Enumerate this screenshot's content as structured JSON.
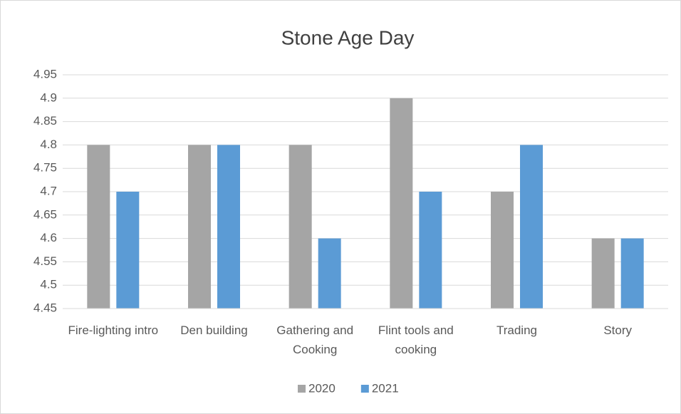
{
  "chart_data": {
    "type": "bar",
    "title": "Stone Age Day",
    "categories": [
      "Fire-lighting intro",
      "Den building",
      "Gathering and Cooking",
      "Flint tools and cooking",
      "Trading",
      "Story"
    ],
    "series": [
      {
        "name": "2020",
        "color": "#a5a5a5",
        "values": [
          4.8,
          4.8,
          4.8,
          4.9,
          4.7,
          4.6
        ]
      },
      {
        "name": "2021",
        "color": "#5b9bd5",
        "values": [
          4.7,
          4.8,
          4.6,
          4.7,
          4.8,
          4.6
        ]
      }
    ],
    "ylim": [
      4.45,
      4.95
    ],
    "yticks": [
      4.45,
      4.5,
      4.55,
      4.6,
      4.65,
      4.7,
      4.75,
      4.8,
      4.85,
      4.9,
      4.95
    ],
    "grid": true,
    "legend": "bottom"
  }
}
